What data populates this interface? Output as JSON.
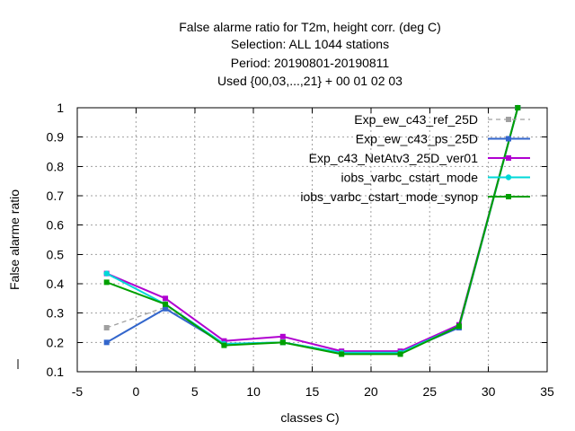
{
  "chart_data": {
    "type": "line",
    "title_lines": [
      "False alarme ratio  for T2m, height corr. (deg C)",
      "Selection: ALL    1044 stations",
      "Period: 20190801-20190811",
      "Used {00,03,...,21} + 00 01 02 03"
    ],
    "xlabel": "classes C)",
    "ylabel": "False alarme ratio",
    "xlim": [
      -5,
      35
    ],
    "ylim": [
      0.1,
      1.0
    ],
    "xticks": [
      -5,
      0,
      5,
      10,
      15,
      20,
      25,
      30,
      35
    ],
    "yticks": [
      0.1,
      0.2,
      0.3,
      0.4,
      0.5,
      0.6,
      0.7,
      0.8,
      0.9,
      1.0
    ],
    "xtick_labels": [
      "-5",
      "0",
      "5",
      "10",
      "15",
      "20",
      "25",
      "30",
      "35"
    ],
    "ytick_labels": [
      "0.1",
      "0.2",
      "0.3",
      "0.4",
      "0.5",
      "0.6",
      "0.7",
      "0.8",
      "0.9",
      "1"
    ],
    "grid": true,
    "legend_position": "top-right",
    "x": [
      -2.5,
      2.5,
      7.5,
      12.5,
      17.5,
      22.5,
      27.5,
      32.5
    ],
    "series": [
      {
        "name": "Exp_ew_c43_ref_25D",
        "color": "#a0a0a0",
        "dashed": true,
        "marker": "square",
        "values": [
          0.25,
          0.32,
          0.195,
          0.2,
          0.165,
          0.165,
          0.255,
          1.0
        ]
      },
      {
        "name": "Exp_ew_c43_ps_25D",
        "color": "#3366cc",
        "dashed": false,
        "marker": "square",
        "values": [
          0.2,
          0.315,
          0.195,
          0.2,
          0.165,
          0.165,
          0.25,
          1.0
        ]
      },
      {
        "name": "Exp_c43_NetAtv3_25D_ver01",
        "color": "#b000d0",
        "dashed": false,
        "marker": "square",
        "values": [
          0.435,
          0.35,
          0.205,
          0.22,
          0.17,
          0.17,
          0.26,
          1.0
        ]
      },
      {
        "name": "iobs_varbc_cstart_mode",
        "color": "#00d8d8",
        "dashed": false,
        "marker": "circle",
        "values": [
          0.435,
          0.33,
          0.195,
          0.2,
          0.165,
          0.165,
          0.255,
          1.0
        ]
      },
      {
        "name": "iobs_varbc_cstart_mode_synop",
        "color": "#00a000",
        "dashed": false,
        "marker": "square",
        "values": [
          0.405,
          0.33,
          0.19,
          0.2,
          0.16,
          0.16,
          0.255,
          1.0
        ]
      }
    ]
  }
}
